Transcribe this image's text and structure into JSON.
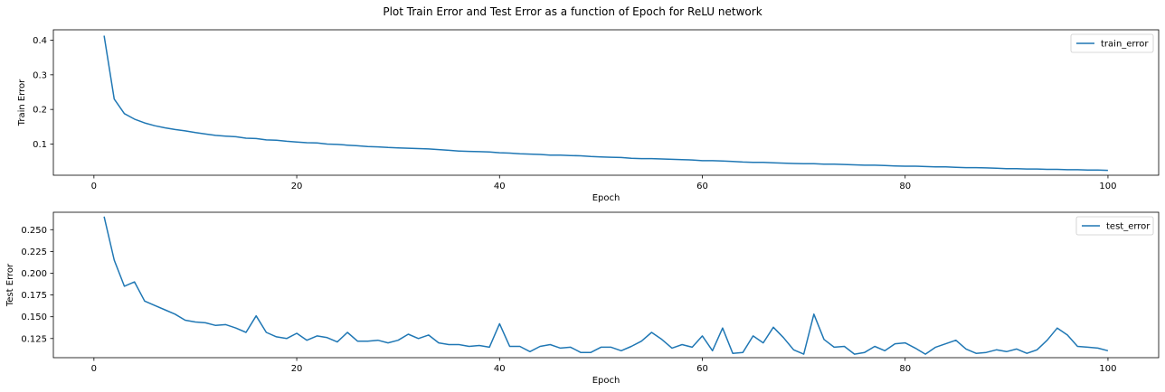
{
  "figure": {
    "title": "Plot Train Error and Test Error as a function of Epoch for ReLU network"
  },
  "colors": {
    "line": "#1f77b4",
    "axes": "#000000",
    "legend_border": "#cccccc"
  },
  "chart_data": [
    {
      "type": "line",
      "xlabel": "Epoch",
      "ylabel": "Train Error",
      "xlim": [
        -4,
        105
      ],
      "ylim": [
        0.01,
        0.43
      ],
      "x_ticks": [
        0,
        20,
        40,
        60,
        80,
        100
      ],
      "x_tick_labels": [
        "0",
        "20",
        "40",
        "60",
        "80",
        "100"
      ],
      "y_ticks": [
        0.1,
        0.2,
        0.3,
        0.4
      ],
      "y_tick_labels": [
        "0.1",
        "0.2",
        "0.3",
        "0.4"
      ],
      "grid": false,
      "legend_position": "top-right",
      "series": [
        {
          "name": "train_error",
          "x": [
            1,
            2,
            3,
            4,
            5,
            6,
            7,
            8,
            9,
            10,
            11,
            12,
            13,
            14,
            15,
            16,
            17,
            18,
            19,
            20,
            21,
            22,
            23,
            24,
            25,
            26,
            27,
            28,
            29,
            30,
            31,
            32,
            33,
            34,
            35,
            36,
            37,
            38,
            39,
            40,
            41,
            42,
            43,
            44,
            45,
            46,
            47,
            48,
            49,
            50,
            51,
            52,
            53,
            54,
            55,
            56,
            57,
            58,
            59,
            60,
            61,
            62,
            63,
            64,
            65,
            66,
            67,
            68,
            69,
            70,
            71,
            72,
            73,
            74,
            75,
            76,
            77,
            78,
            79,
            80,
            81,
            82,
            83,
            84,
            85,
            86,
            87,
            88,
            89,
            90,
            91,
            92,
            93,
            94,
            95,
            96,
            97,
            98,
            99,
            100
          ],
          "y": [
            0.413,
            0.23,
            0.188,
            0.172,
            0.161,
            0.153,
            0.147,
            0.142,
            0.138,
            0.133,
            0.129,
            0.125,
            0.123,
            0.121,
            0.117,
            0.116,
            0.112,
            0.111,
            0.108,
            0.106,
            0.104,
            0.103,
            0.1,
            0.099,
            0.097,
            0.095,
            0.093,
            0.092,
            0.09,
            0.089,
            0.088,
            0.087,
            0.086,
            0.084,
            0.082,
            0.08,
            0.079,
            0.078,
            0.077,
            0.075,
            0.074,
            0.072,
            0.071,
            0.07,
            0.068,
            0.068,
            0.067,
            0.066,
            0.064,
            0.063,
            0.062,
            0.061,
            0.059,
            0.058,
            0.058,
            0.057,
            0.056,
            0.055,
            0.054,
            0.052,
            0.052,
            0.051,
            0.05,
            0.048,
            0.047,
            0.047,
            0.046,
            0.045,
            0.044,
            0.043,
            0.043,
            0.042,
            0.042,
            0.041,
            0.04,
            0.039,
            0.039,
            0.038,
            0.037,
            0.036,
            0.036,
            0.035,
            0.034,
            0.034,
            0.033,
            0.032,
            0.032,
            0.031,
            0.03,
            0.029,
            0.029,
            0.028,
            0.028,
            0.027,
            0.027,
            0.026,
            0.026,
            0.025,
            0.025,
            0.024
          ]
        }
      ]
    },
    {
      "type": "line",
      "xlabel": "Epoch",
      "ylabel": "Test Error",
      "xlim": [
        -4,
        105
      ],
      "ylim": [
        0.103,
        0.27
      ],
      "x_ticks": [
        0,
        20,
        40,
        60,
        80,
        100
      ],
      "x_tick_labels": [
        "0",
        "20",
        "40",
        "60",
        "80",
        "100"
      ],
      "y_ticks": [
        0.125,
        0.15,
        0.175,
        0.2,
        0.225,
        0.25
      ],
      "y_tick_labels": [
        "0.125",
        "0.150",
        "0.175",
        "0.200",
        "0.225",
        "0.250"
      ],
      "grid": false,
      "legend_position": "top-right",
      "series": [
        {
          "name": "test_error",
          "x": [
            1,
            2,
            3,
            4,
            5,
            6,
            7,
            8,
            9,
            10,
            11,
            12,
            13,
            14,
            15,
            16,
            17,
            18,
            19,
            20,
            21,
            22,
            23,
            24,
            25,
            26,
            27,
            28,
            29,
            30,
            31,
            32,
            33,
            34,
            35,
            36,
            37,
            38,
            39,
            40,
            41,
            42,
            43,
            44,
            45,
            46,
            47,
            48,
            49,
            50,
            51,
            52,
            53,
            54,
            55,
            56,
            57,
            58,
            59,
            60,
            61,
            62,
            63,
            64,
            65,
            66,
            67,
            68,
            69,
            70,
            71,
            72,
            73,
            74,
            75,
            76,
            77,
            78,
            79,
            80,
            81,
            82,
            83,
            84,
            85,
            86,
            87,
            88,
            89,
            90,
            91,
            92,
            93,
            94,
            95,
            96,
            97,
            98,
            99,
            100
          ],
          "y": [
            0.265,
            0.215,
            0.185,
            0.19,
            0.168,
            0.163,
            0.158,
            0.153,
            0.146,
            0.144,
            0.143,
            0.14,
            0.141,
            0.137,
            0.132,
            0.151,
            0.132,
            0.127,
            0.125,
            0.131,
            0.123,
            0.128,
            0.126,
            0.121,
            0.132,
            0.122,
            0.122,
            0.123,
            0.12,
            0.123,
            0.13,
            0.125,
            0.129,
            0.12,
            0.118,
            0.118,
            0.116,
            0.117,
            0.115,
            0.142,
            0.116,
            0.116,
            0.11,
            0.116,
            0.118,
            0.114,
            0.115,
            0.109,
            0.109,
            0.115,
            0.115,
            0.111,
            0.116,
            0.122,
            0.132,
            0.124,
            0.114,
            0.118,
            0.115,
            0.128,
            0.111,
            0.137,
            0.108,
            0.109,
            0.128,
            0.12,
            0.138,
            0.126,
            0.112,
            0.107,
            0.153,
            0.124,
            0.115,
            0.116,
            0.107,
            0.109,
            0.116,
            0.111,
            0.119,
            0.12,
            0.114,
            0.107,
            0.115,
            0.119,
            0.123,
            0.113,
            0.108,
            0.109,
            0.112,
            0.11,
            0.113,
            0.108,
            0.112,
            0.123,
            0.137,
            0.129,
            0.116,
            0.115,
            0.114,
            0.111
          ]
        }
      ]
    }
  ]
}
